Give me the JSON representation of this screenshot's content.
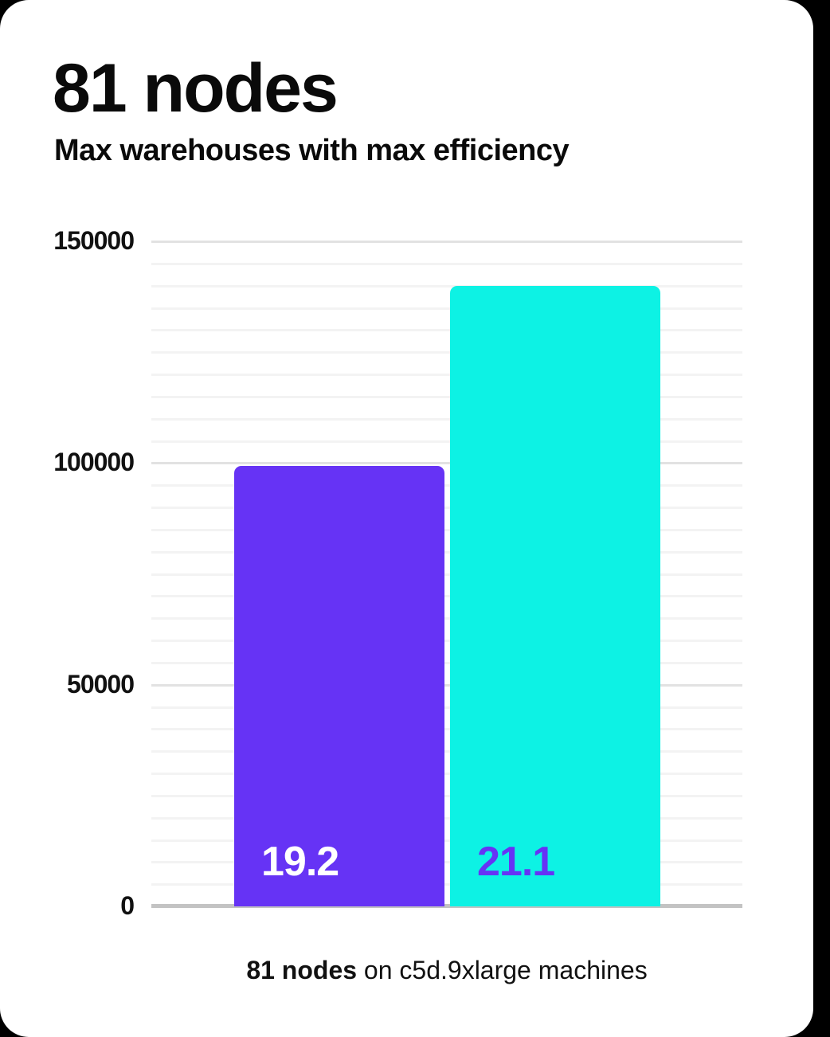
{
  "header": {
    "title": "81 nodes",
    "subtitle": "Max warehouses with max efficiency"
  },
  "caption": {
    "bold": "81 nodes",
    "rest": " on c5d.9xlarge machines"
  },
  "colors": {
    "card_background": "#ffffff",
    "page_background": "#000000",
    "text": "#0a0a0a",
    "bar_purple": "#6633f5",
    "bar_cyan": "#0df2e4",
    "minor_gridline": "#f3f3f3",
    "major_gridline": "#e2e2e2",
    "baseline": "#c3c3c3"
  },
  "chart_data": {
    "type": "bar",
    "title": "81 nodes",
    "subtitle": "Max warehouses with max efficiency",
    "xlabel": "81 nodes on c5d.9xlarge machines",
    "ylabel": "",
    "ylim": [
      0,
      150000
    ],
    "grid": true,
    "legend": false,
    "minor_grid_step": 5000,
    "yticks": {
      "values": [
        0,
        50000,
        100000,
        150000
      ],
      "labels": [
        "0",
        "50000",
        "100000",
        "150000"
      ]
    },
    "series": [
      {
        "name": "bar-1",
        "value": 99300,
        "bar_label": "19.2",
        "bar_color": "#6633f5",
        "label_color": "#ffffff"
      },
      {
        "name": "bar-2",
        "value": 139900,
        "bar_label": "21.1",
        "bar_color": "#0df2e4",
        "label_color": "#6633f5"
      }
    ]
  }
}
